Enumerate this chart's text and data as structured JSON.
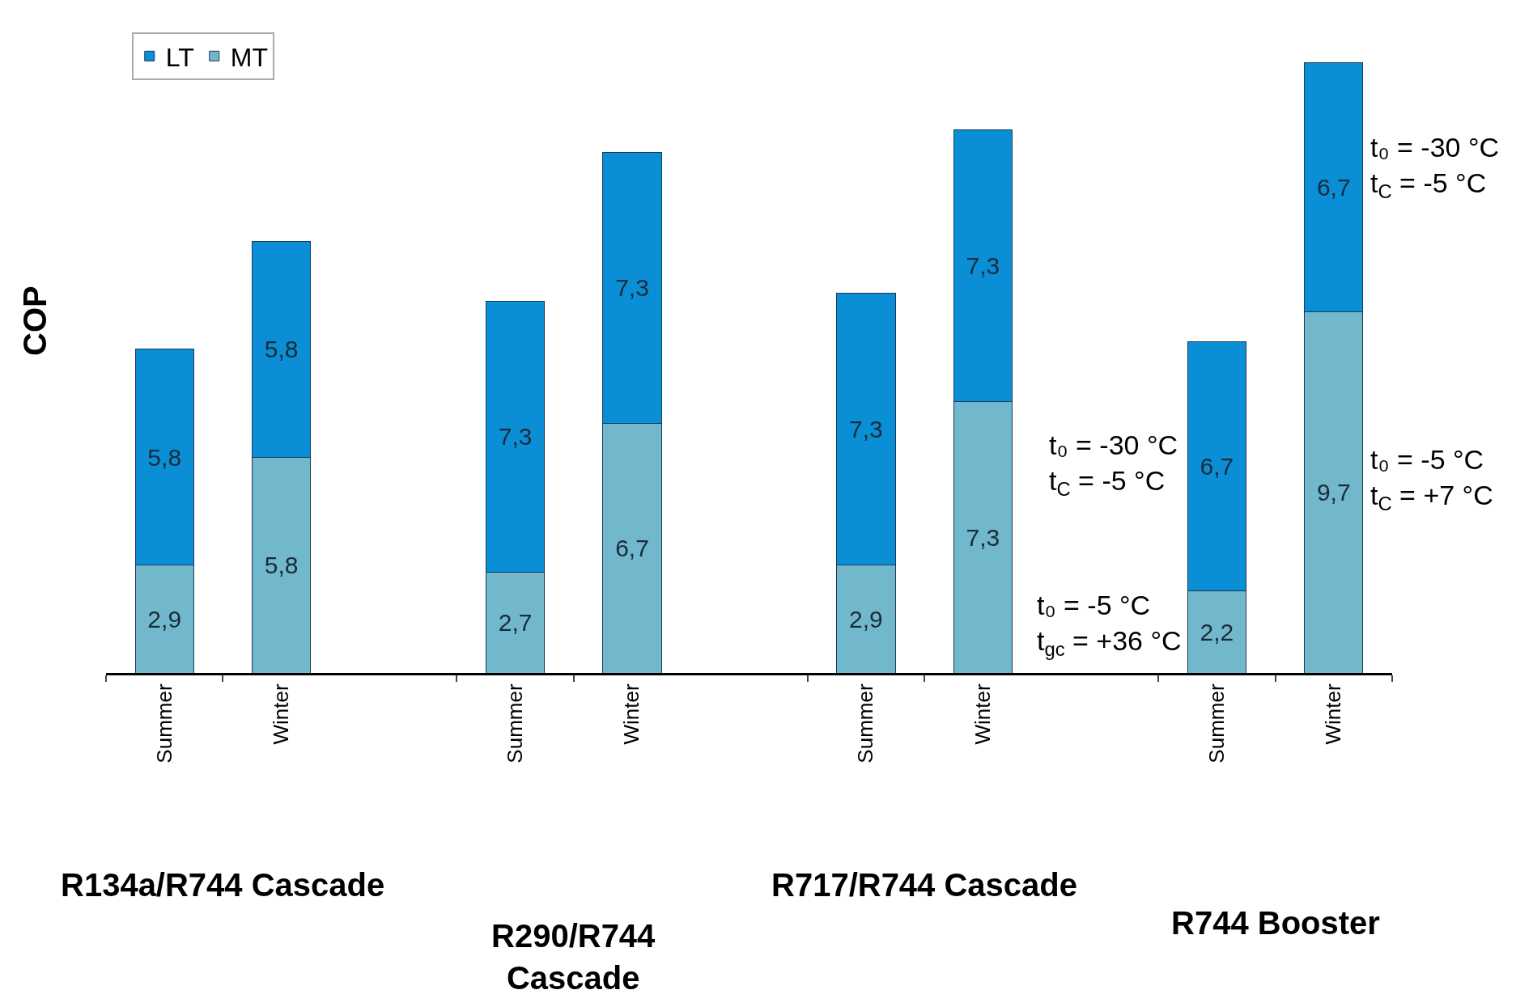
{
  "chart_data": {
    "type": "bar",
    "stacked": true,
    "ylabel": "COP",
    "legend": "top left",
    "categories": [
      "Summer",
      "Winter",
      null,
      "Summer",
      "Winter",
      null,
      "Summer",
      "Winter",
      null,
      "Summer",
      "Winter"
    ],
    "series": [
      {
        "name": "MT",
        "color": "#72b8cc",
        "values": [
          2.9,
          5.8,
          null,
          2.7,
          6.7,
          null,
          2.9,
          7.3,
          null,
          2.2,
          9.7
        ],
        "value_labels": [
          "2,9",
          "5,8",
          null,
          "2,7",
          "6,7",
          null,
          "2,9",
          "7,3",
          null,
          "2,2",
          "9,7"
        ]
      },
      {
        "name": "LT",
        "color": "#0a8fd6",
        "values": [
          5.8,
          5.8,
          null,
          7.3,
          7.3,
          null,
          7.3,
          7.3,
          null,
          6.7,
          6.7
        ],
        "value_labels": [
          "5,8",
          "5,8",
          null,
          "7,3",
          "7,3",
          null,
          "7,3",
          "7,3",
          null,
          "6,7",
          "6,7"
        ]
      }
    ],
    "annotations": [
      "R134a/R744 Cascade",
      "R290/R744\nCascade",
      "R717/R744 Cascade",
      "R744 Booster",
      "t₀ = -30 °C\nt$_{C}$ = -5 °C",
      "t₀ = -5 °C\nt$_{gc}$ = +36 °C",
      "t₀ = -30 °C\nt$_{C}$ = -5 °C",
      "t₀ = -5 °C\nt$_{C}$ = +7 °C"
    ]
  }
}
